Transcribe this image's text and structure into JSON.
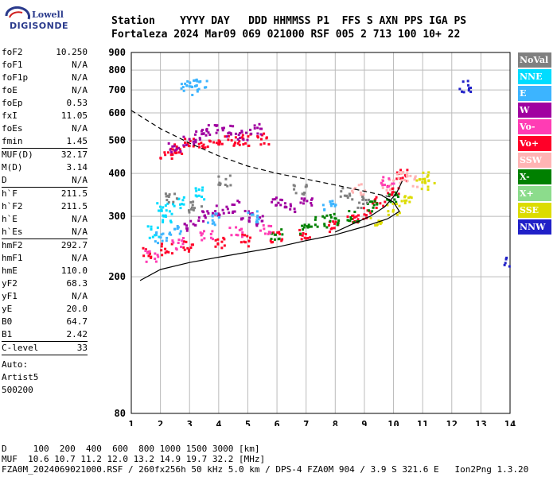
{
  "logo": {
    "line1": "Lowell",
    "line2": "DIGISONDE"
  },
  "header": {
    "labels": "Station    YYYY DAY   DDD HHMMSS P1  FFS S AXN PPS IGA PS",
    "values": "Fortaleza 2024 Mar09 069 021000 RSF 005 2 713 100 10+ 22"
  },
  "params": {
    "group1": [
      {
        "k": "foF2",
        "v": "10.250"
      },
      {
        "k": "foF1",
        "v": "N/A"
      },
      {
        "k": "foF1p",
        "v": "N/A"
      },
      {
        "k": "foE",
        "v": "N/A"
      },
      {
        "k": "foEp",
        "v": "0.53"
      },
      {
        "k": "fxI",
        "v": "11.05"
      },
      {
        "k": "foEs",
        "v": "N/A"
      },
      {
        "k": "fmin",
        "v": "1.45"
      }
    ],
    "group2": [
      {
        "k": "MUF(D)",
        "v": "32.17"
      },
      {
        "k": "M(D)",
        "v": "3.14"
      },
      {
        "k": "D",
        "v": "N/A"
      }
    ],
    "group3": [
      {
        "k": "h`F",
        "v": "211.5"
      },
      {
        "k": "h`F2",
        "v": "211.5"
      },
      {
        "k": "h`E",
        "v": "N/A"
      },
      {
        "k": "h`Es",
        "v": "N/A"
      }
    ],
    "group4": [
      {
        "k": "hmF2",
        "v": "292.7"
      },
      {
        "k": "hmF1",
        "v": "N/A"
      },
      {
        "k": "hmE",
        "v": "110.0"
      },
      {
        "k": "yF2",
        "v": "68.3"
      },
      {
        "k": "yF1",
        "v": "N/A"
      },
      {
        "k": "yE",
        "v": "20.0"
      },
      {
        "k": "B0",
        "v": "64.7"
      },
      {
        "k": "B1",
        "v": "2.42"
      }
    ],
    "group5": [
      {
        "k": "C-level",
        "v": "33"
      }
    ],
    "auto": [
      "Auto:",
      "Artist5",
      "500200"
    ]
  },
  "legend": [
    {
      "label": "NoVal",
      "color": "#808080"
    },
    {
      "label": "NNE",
      "color": "#00dcff"
    },
    {
      "label": "E",
      "color": "#3cb4ff"
    },
    {
      "label": "W",
      "color": "#a000a0"
    },
    {
      "label": "Vo-",
      "color": "#ff3cb4"
    },
    {
      "label": "Vo+",
      "color": "#ff0028"
    },
    {
      "label": "SSW",
      "color": "#ffb4b4"
    },
    {
      "label": "X-",
      "color": "#008000"
    },
    {
      "label": "X+",
      "color": "#8cdc8c"
    },
    {
      "label": "SSE",
      "color": "#dcdc00"
    },
    {
      "label": "NNW",
      "color": "#2020c8"
    }
  ],
  "footer": {
    "line1": "D     100  200  400  600  800 1000 1500 3000 [km]",
    "line2": "MUF  10.6 10.7 11.2 12.0 13.2 14.9 19.7 32.2 [MHz]",
    "line3": "FZA0M_2024069021000.RSF / 260fx256h 50 kHz 5.0 km / DPS-4 FZA0M 904 / 3.9 S 321.6 E   Ion2Png 1.3.20"
  },
  "chart_data": {
    "type": "scatter",
    "title": "",
    "xlabel": "",
    "ylabel": "",
    "xlim": [
      1,
      14
    ],
    "ylim": [
      80,
      900
    ],
    "x_ticks": [
      1,
      2,
      3,
      4,
      5,
      6,
      7,
      8,
      9,
      10,
      11,
      12,
      13,
      14
    ],
    "y_ticks": [
      80,
      200,
      300,
      400,
      500,
      600,
      700,
      800,
      900
    ],
    "y_scale": "log",
    "grid": true,
    "legend_position": "right",
    "series": [
      {
        "kind": "echo_cluster",
        "color": "#ff0028",
        "points": [
          [
            1.6,
            235
          ],
          [
            2.2,
            240
          ],
          [
            3,
            245
          ],
          [
            4,
            250
          ],
          [
            5,
            255
          ],
          [
            6,
            262
          ],
          [
            7,
            268
          ],
          [
            8,
            280
          ],
          [
            8.6,
            290
          ],
          [
            9,
            305
          ],
          [
            9.5,
            330
          ],
          [
            10,
            360
          ],
          [
            10.3,
            395
          ]
        ]
      },
      {
        "kind": "echo_cluster",
        "color": "#a000a0",
        "points": [
          [
            3,
            280
          ],
          [
            3.5,
            300
          ],
          [
            4,
            310
          ],
          [
            4.5,
            320
          ],
          [
            5,
            300
          ],
          [
            5.5,
            290
          ],
          [
            6,
            330
          ],
          [
            6.5,
            320
          ],
          [
            7,
            330
          ]
        ]
      },
      {
        "kind": "echo_cluster",
        "color": "#00dcff",
        "points": [
          [
            1.8,
            270
          ],
          [
            2.3,
            300
          ],
          [
            2.6,
            330
          ],
          [
            3.3,
            350
          ],
          [
            2.1,
            320
          ]
        ]
      },
      {
        "kind": "echo_cluster",
        "color": "#008000",
        "points": [
          [
            6,
            265
          ],
          [
            7,
            275
          ],
          [
            7.5,
            290
          ],
          [
            8,
            295
          ],
          [
            8.6,
            300
          ],
          [
            9.3,
            320
          ],
          [
            10,
            340
          ]
        ]
      },
      {
        "kind": "echo_cluster",
        "color": "#dcdc00",
        "points": [
          [
            9.4,
            290
          ],
          [
            10,
            315
          ],
          [
            10.5,
            340
          ],
          [
            11,
            370
          ],
          [
            11.2,
            390
          ]
        ]
      },
      {
        "kind": "echo_cluster",
        "color": "#ffb4b4",
        "points": [
          [
            9.8,
            370
          ],
          [
            10.3,
            390
          ],
          [
            10.6,
            380
          ],
          [
            8.8,
            360
          ]
        ]
      },
      {
        "kind": "echo_cluster",
        "color": "#ff3cb4",
        "points": [
          [
            1.7,
            230
          ],
          [
            2.6,
            250
          ],
          [
            3.6,
            265
          ],
          [
            4.6,
            270
          ],
          [
            5.6,
            275
          ],
          [
            9.8,
            380
          ]
        ]
      },
      {
        "kind": "echo_cluster",
        "color": "#3cb4ff",
        "points": [
          [
            2,
            260
          ],
          [
            2.5,
            275
          ],
          [
            3.8,
            295
          ],
          [
            5.2,
            300
          ],
          [
            7.8,
            320
          ]
        ]
      },
      {
        "kind": "echo_cluster",
        "color": "#808080",
        "points": [
          [
            2.4,
            340
          ],
          [
            3.2,
            320
          ],
          [
            4.2,
            380
          ],
          [
            6.8,
            360
          ],
          [
            8.4,
            350
          ],
          [
            9,
            330
          ]
        ]
      },
      {
        "kind": "echo_cluster",
        "color": "#ff0028",
        "points": [
          [
            2.2,
            460
          ],
          [
            2.6,
            470
          ],
          [
            3,
            485
          ],
          [
            3.5,
            490
          ],
          [
            4,
            495
          ],
          [
            4.5,
            498
          ],
          [
            5,
            500
          ],
          [
            5.5,
            505
          ]
        ]
      },
      {
        "kind": "echo_cluster",
        "color": "#a000a0",
        "points": [
          [
            2.5,
            480
          ],
          [
            3,
            500
          ],
          [
            3.4,
            520
          ],
          [
            3.8,
            540
          ],
          [
            4.3,
            530
          ],
          [
            4.8,
            520
          ],
          [
            5.3,
            540
          ]
        ]
      },
      {
        "kind": "echo_cluster",
        "color": "#3cb4ff",
        "points": [
          [
            3.1,
            720
          ],
          [
            3.4,
            725
          ],
          [
            2.9,
            705
          ]
        ]
      },
      {
        "kind": "echo_cluster",
        "color": "#2020c8",
        "points": [
          [
            12.5,
            715
          ],
          [
            14,
            220
          ]
        ]
      }
    ],
    "curves": [
      {
        "name": "model_profile",
        "style": "dashed",
        "points": [
          [
            1,
            610
          ],
          [
            2,
            540
          ],
          [
            3,
            490
          ],
          [
            4,
            450
          ],
          [
            5,
            420
          ],
          [
            6,
            400
          ],
          [
            7,
            385
          ],
          [
            8,
            370
          ],
          [
            9,
            355
          ],
          [
            10,
            340
          ]
        ]
      },
      {
        "name": "true_height",
        "style": "solid",
        "points": [
          [
            1.3,
            195
          ],
          [
            2,
            210
          ],
          [
            3,
            220
          ],
          [
            4,
            228
          ],
          [
            5,
            236
          ],
          [
            6,
            244
          ],
          [
            7,
            255
          ],
          [
            8,
            265
          ],
          [
            9,
            280
          ],
          [
            9.8,
            295
          ],
          [
            10.2,
            310
          ],
          [
            10.0,
            330
          ],
          [
            9.6,
            345
          ]
        ]
      },
      {
        "name": "trace_fit",
        "style": "solid",
        "points": [
          [
            8,
            270
          ],
          [
            8.6,
            285
          ],
          [
            9.2,
            300
          ],
          [
            9.7,
            320
          ],
          [
            10.1,
            350
          ],
          [
            10.3,
            380
          ]
        ]
      }
    ]
  }
}
